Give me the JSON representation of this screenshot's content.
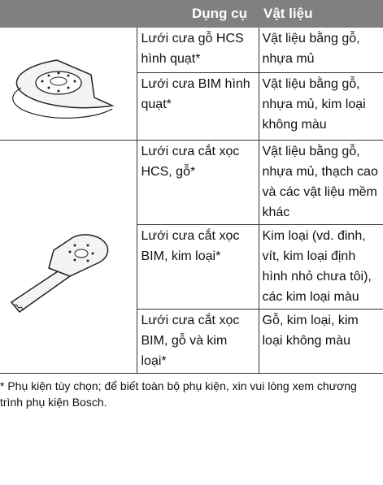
{
  "table": {
    "header": [
      "Dụng cụ",
      "Vật liệu"
    ],
    "groups": [
      {
        "rows": [
          {
            "tool": "Lưới cưa gỗ HCS hình quạt*",
            "material": "Vật liệu bằng gỗ, nhựa mủ"
          },
          {
            "tool": "Lưới cưa BIM hình quạt*",
            "material": "Vật liệu bằng gỗ, nhựa mủ, kim loại không màu"
          }
        ]
      },
      {
        "rows": [
          {
            "tool": "Lưới cưa cắt xọc HCS, gỗ*",
            "material": "Vật liệu bằng gỗ, nhựa mủ, thạch cao và các vật liệu mềm khác"
          },
          {
            "tool": "Lưới cưa cắt xọc BIM, kim loại*",
            "material": "Kim loại (vd. đinh, vít, kim loại định hình nhỏ chưa tôi), các kim loại màu"
          },
          {
            "tool": "Lưới cưa cắt xọc BIM, gỗ và kim loại*",
            "material": "Gỗ, kim loại, kim loại không màu"
          }
        ]
      }
    ]
  },
  "footnote": "* Phụ kiện tùy chọn; để biết toàn bộ phụ kiện, xin vui lòng xem chương trình phụ kiện Bosch."
}
